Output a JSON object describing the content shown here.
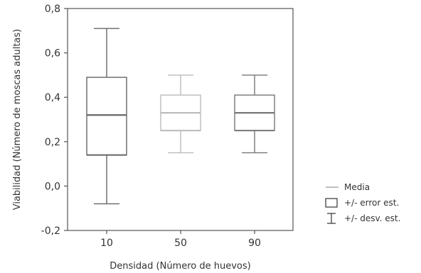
{
  "chart_data": {
    "type": "boxplot",
    "title": "",
    "xlabel": "Densidad (Número de huevos)",
    "ylabel": "Viabilidad (Número de moscas adultas)",
    "ylim": [
      -0.2,
      0.8
    ],
    "yticks": [
      "-0,2",
      "0,0",
      "0,2",
      "0,4",
      "0,6",
      "0,8"
    ],
    "grid": false,
    "legend_position": "right",
    "categories": [
      "10",
      "50",
      "90"
    ],
    "boxes": [
      {
        "category": "10",
        "mean": 0.32,
        "se_low": 0.14,
        "se_high": 0.49,
        "sd_low": -0.08,
        "sd_high": 0.71,
        "color": "#666666"
      },
      {
        "category": "50",
        "mean": 0.33,
        "se_low": 0.25,
        "se_high": 0.41,
        "sd_low": 0.15,
        "sd_high": 0.5,
        "color": "#bbbbbb"
      },
      {
        "category": "90",
        "mean": 0.33,
        "se_low": 0.25,
        "se_high": 0.41,
        "sd_low": 0.15,
        "sd_high": 0.5,
        "color": "#777777"
      }
    ],
    "legend": [
      {
        "symbol": "mean-line",
        "label": "Media"
      },
      {
        "symbol": "box",
        "label": "+/- error est."
      },
      {
        "symbol": "whisker",
        "label": "+/- desv. est."
      }
    ]
  }
}
